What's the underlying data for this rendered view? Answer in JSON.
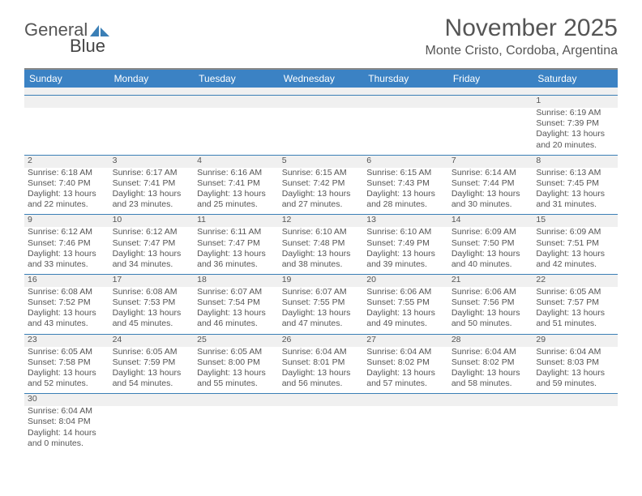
{
  "logo": {
    "part1": "General",
    "part2": "Blue"
  },
  "title": "November 2025",
  "location": "Monte Cristo, Cordoba, Argentina",
  "colors": {
    "header_bg": "#3b82c4",
    "rule": "#3b7fb6",
    "num_bg": "#f0f0f0",
    "text": "#555555"
  },
  "fonts": {
    "title_size": 30,
    "location_size": 16,
    "dayhead_size": 12,
    "cell_size": 10.5
  },
  "dayNames": [
    "Sunday",
    "Monday",
    "Tuesday",
    "Wednesday",
    "Thursday",
    "Friday",
    "Saturday"
  ],
  "firstDayColumn": 6,
  "daysInMonth": 30,
  "days": {
    "1": {
      "sunrise": "Sunrise: 6:19 AM",
      "sunset": "Sunset: 7:39 PM",
      "daylight": "Daylight: 13 hours and 20 minutes."
    },
    "2": {
      "sunrise": "Sunrise: 6:18 AM",
      "sunset": "Sunset: 7:40 PM",
      "daylight": "Daylight: 13 hours and 22 minutes."
    },
    "3": {
      "sunrise": "Sunrise: 6:17 AM",
      "sunset": "Sunset: 7:41 PM",
      "daylight": "Daylight: 13 hours and 23 minutes."
    },
    "4": {
      "sunrise": "Sunrise: 6:16 AM",
      "sunset": "Sunset: 7:41 PM",
      "daylight": "Daylight: 13 hours and 25 minutes."
    },
    "5": {
      "sunrise": "Sunrise: 6:15 AM",
      "sunset": "Sunset: 7:42 PM",
      "daylight": "Daylight: 13 hours and 27 minutes."
    },
    "6": {
      "sunrise": "Sunrise: 6:15 AM",
      "sunset": "Sunset: 7:43 PM",
      "daylight": "Daylight: 13 hours and 28 minutes."
    },
    "7": {
      "sunrise": "Sunrise: 6:14 AM",
      "sunset": "Sunset: 7:44 PM",
      "daylight": "Daylight: 13 hours and 30 minutes."
    },
    "8": {
      "sunrise": "Sunrise: 6:13 AM",
      "sunset": "Sunset: 7:45 PM",
      "daylight": "Daylight: 13 hours and 31 minutes."
    },
    "9": {
      "sunrise": "Sunrise: 6:12 AM",
      "sunset": "Sunset: 7:46 PM",
      "daylight": "Daylight: 13 hours and 33 minutes."
    },
    "10": {
      "sunrise": "Sunrise: 6:12 AM",
      "sunset": "Sunset: 7:47 PM",
      "daylight": "Daylight: 13 hours and 34 minutes."
    },
    "11": {
      "sunrise": "Sunrise: 6:11 AM",
      "sunset": "Sunset: 7:47 PM",
      "daylight": "Daylight: 13 hours and 36 minutes."
    },
    "12": {
      "sunrise": "Sunrise: 6:10 AM",
      "sunset": "Sunset: 7:48 PM",
      "daylight": "Daylight: 13 hours and 38 minutes."
    },
    "13": {
      "sunrise": "Sunrise: 6:10 AM",
      "sunset": "Sunset: 7:49 PM",
      "daylight": "Daylight: 13 hours and 39 minutes."
    },
    "14": {
      "sunrise": "Sunrise: 6:09 AM",
      "sunset": "Sunset: 7:50 PM",
      "daylight": "Daylight: 13 hours and 40 minutes."
    },
    "15": {
      "sunrise": "Sunrise: 6:09 AM",
      "sunset": "Sunset: 7:51 PM",
      "daylight": "Daylight: 13 hours and 42 minutes."
    },
    "16": {
      "sunrise": "Sunrise: 6:08 AM",
      "sunset": "Sunset: 7:52 PM",
      "daylight": "Daylight: 13 hours and 43 minutes."
    },
    "17": {
      "sunrise": "Sunrise: 6:08 AM",
      "sunset": "Sunset: 7:53 PM",
      "daylight": "Daylight: 13 hours and 45 minutes."
    },
    "18": {
      "sunrise": "Sunrise: 6:07 AM",
      "sunset": "Sunset: 7:54 PM",
      "daylight": "Daylight: 13 hours and 46 minutes."
    },
    "19": {
      "sunrise": "Sunrise: 6:07 AM",
      "sunset": "Sunset: 7:55 PM",
      "daylight": "Daylight: 13 hours and 47 minutes."
    },
    "20": {
      "sunrise": "Sunrise: 6:06 AM",
      "sunset": "Sunset: 7:55 PM",
      "daylight": "Daylight: 13 hours and 49 minutes."
    },
    "21": {
      "sunrise": "Sunrise: 6:06 AM",
      "sunset": "Sunset: 7:56 PM",
      "daylight": "Daylight: 13 hours and 50 minutes."
    },
    "22": {
      "sunrise": "Sunrise: 6:05 AM",
      "sunset": "Sunset: 7:57 PM",
      "daylight": "Daylight: 13 hours and 51 minutes."
    },
    "23": {
      "sunrise": "Sunrise: 6:05 AM",
      "sunset": "Sunset: 7:58 PM",
      "daylight": "Daylight: 13 hours and 52 minutes."
    },
    "24": {
      "sunrise": "Sunrise: 6:05 AM",
      "sunset": "Sunset: 7:59 PM",
      "daylight": "Daylight: 13 hours and 54 minutes."
    },
    "25": {
      "sunrise": "Sunrise: 6:05 AM",
      "sunset": "Sunset: 8:00 PM",
      "daylight": "Daylight: 13 hours and 55 minutes."
    },
    "26": {
      "sunrise": "Sunrise: 6:04 AM",
      "sunset": "Sunset: 8:01 PM",
      "daylight": "Daylight: 13 hours and 56 minutes."
    },
    "27": {
      "sunrise": "Sunrise: 6:04 AM",
      "sunset": "Sunset: 8:02 PM",
      "daylight": "Daylight: 13 hours and 57 minutes."
    },
    "28": {
      "sunrise": "Sunrise: 6:04 AM",
      "sunset": "Sunset: 8:02 PM",
      "daylight": "Daylight: 13 hours and 58 minutes."
    },
    "29": {
      "sunrise": "Sunrise: 6:04 AM",
      "sunset": "Sunset: 8:03 PM",
      "daylight": "Daylight: 13 hours and 59 minutes."
    },
    "30": {
      "sunrise": "Sunrise: 6:04 AM",
      "sunset": "Sunset: 8:04 PM",
      "daylight": "Daylight: 14 hours and 0 minutes."
    }
  }
}
